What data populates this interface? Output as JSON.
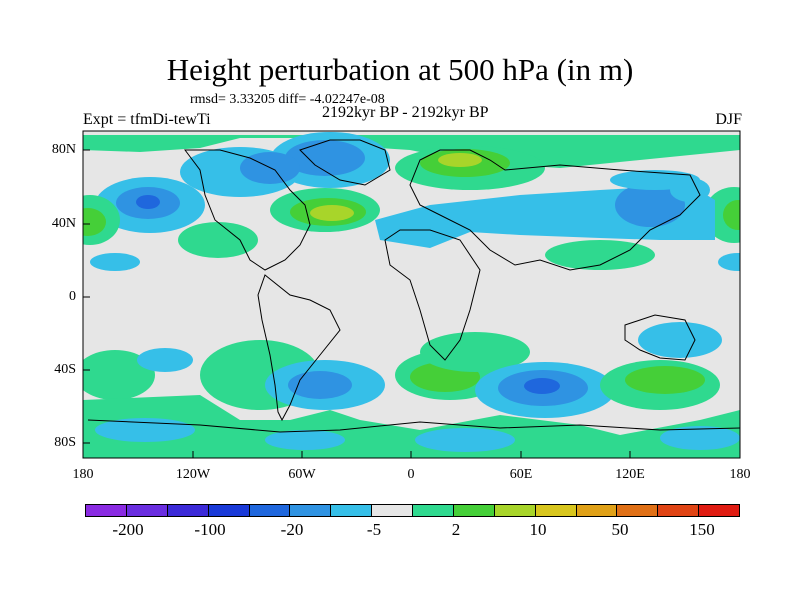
{
  "header": {
    "title": "Height perturbation at 500 hPa (in m)",
    "stats": "rmsd= 3.33205 diff= -4.02247e-08",
    "period": "2192kyr BP - 2192kyr BP",
    "experiment": "Expt = tfmDi-tewTi",
    "season": "DJF"
  },
  "axes": {
    "lon_ticks": [
      "180",
      "120W",
      "60W",
      "0",
      "60E",
      "120E",
      "180"
    ],
    "lat_ticks": [
      "80N",
      "40N",
      "0",
      "40S",
      "80S"
    ]
  },
  "colorbar": {
    "colors": [
      "#8a2be2",
      "#6a2ee0",
      "#3c2ad8",
      "#1a3ad8",
      "#1f67dd",
      "#2f93e2",
      "#36bfe8",
      "#e6e6e6",
      "#2fd98f",
      "#45cf38",
      "#a8d52a",
      "#d8c61e",
      "#e0a118",
      "#e07016",
      "#e04414",
      "#e01c12"
    ],
    "labels": [
      "-200",
      "-100",
      "-20",
      "-5",
      "2",
      "10",
      "50",
      "150"
    ]
  }
}
